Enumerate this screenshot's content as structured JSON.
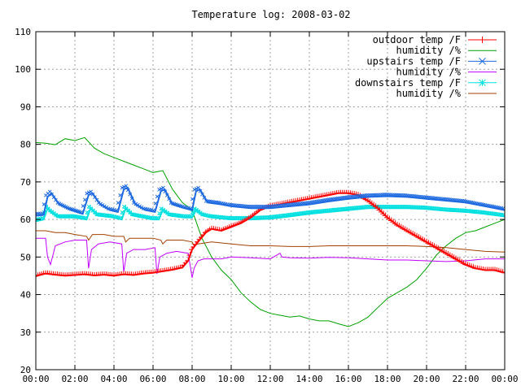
{
  "chart_data": {
    "type": "line",
    "title": "Temperature log: 2008-03-02",
    "xlabel": "",
    "ylabel": "",
    "xlim": [
      0,
      24
    ],
    "ylim": [
      20,
      110
    ],
    "grid": true,
    "legend_position": "top-right",
    "x_ticks": [
      {
        "value": 0,
        "label": "00:00"
      },
      {
        "value": 2,
        "label": "02:00"
      },
      {
        "value": 4,
        "label": "04:00"
      },
      {
        "value": 6,
        "label": "06:00"
      },
      {
        "value": 8,
        "label": "08:00"
      },
      {
        "value": 10,
        "label": "10:00"
      },
      {
        "value": 12,
        "label": "12:00"
      },
      {
        "value": 14,
        "label": "14:00"
      },
      {
        "value": 16,
        "label": "16:00"
      },
      {
        "value": 18,
        "label": "18:00"
      },
      {
        "value": 20,
        "label": "20:00"
      },
      {
        "value": 22,
        "label": "22:00"
      },
      {
        "value": 24,
        "label": "00:00"
      }
    ],
    "y_ticks": [
      {
        "value": 20,
        "label": "20"
      },
      {
        "value": 30,
        "label": "30"
      },
      {
        "value": 40,
        "label": "40"
      },
      {
        "value": 50,
        "label": "50"
      },
      {
        "value": 60,
        "label": "60"
      },
      {
        "value": 70,
        "label": "70"
      },
      {
        "value": 80,
        "label": "80"
      },
      {
        "value": 90,
        "label": "90"
      },
      {
        "value": 100,
        "label": "100"
      },
      {
        "value": 110,
        "label": "110"
      }
    ],
    "series": [
      {
        "name": "outdoor temp /F",
        "color": "#ff0000",
        "marker": "plus",
        "x": [
          0,
          0.5,
          1,
          1.5,
          2,
          2.5,
          3,
          3.5,
          4,
          4.5,
          5,
          5.5,
          6,
          6.5,
          7,
          7.5,
          7.8,
          8,
          8.3,
          8.7,
          9,
          9.5,
          10,
          10.5,
          11,
          11.5,
          12,
          12.5,
          13,
          13.5,
          14,
          14.5,
          15,
          15.5,
          16,
          16.5,
          17,
          17.5,
          18,
          18.5,
          19,
          19.5,
          20,
          20.5,
          21,
          21.5,
          22,
          22.5,
          23,
          23.5,
          24
        ],
        "y": [
          44.9,
          45.6,
          45.3,
          45.0,
          45.2,
          45.4,
          45.1,
          45.3,
          45.0,
          45.4,
          45.2,
          45.6,
          45.8,
          46.2,
          46.6,
          47.2,
          49.0,
          52.0,
          54.0,
          56.5,
          57.5,
          57.0,
          58.0,
          59.0,
          60.5,
          62.5,
          63.5,
          64.0,
          64.5,
          65.0,
          65.5,
          66.0,
          66.5,
          67.0,
          67.0,
          66.5,
          65.0,
          63.0,
          60.5,
          58.5,
          57.0,
          55.5,
          54.0,
          52.5,
          51.0,
          49.5,
          48.0,
          47.0,
          46.5,
          46.5,
          45.8
        ]
      },
      {
        "name": "humidity /%",
        "color": "#00a000",
        "marker": "none",
        "x": [
          0,
          0.5,
          1,
          1.5,
          2,
          2.5,
          3,
          3.5,
          4,
          4.5,
          5,
          5.5,
          6,
          6.5,
          7,
          7.5,
          8,
          8.5,
          9,
          9.5,
          10,
          10.5,
          11,
          11.5,
          12,
          12.5,
          13,
          13.5,
          14,
          14.5,
          15,
          15.5,
          16,
          16.5,
          17,
          17.5,
          18,
          18.5,
          19,
          19.5,
          20,
          20.5,
          21,
          21.5,
          22,
          22.5,
          23,
          23.5,
          24
        ],
        "y": [
          80.5,
          80.3,
          79.9,
          81.5,
          81.0,
          81.8,
          79.0,
          77.5,
          76.5,
          75.5,
          74.5,
          73.5,
          72.5,
          73.0,
          68.0,
          64.5,
          62.5,
          55.0,
          50.0,
          46.5,
          44.0,
          40.5,
          38.0,
          36.0,
          35.0,
          34.5,
          34.0,
          34.3,
          33.5,
          33.0,
          33.0,
          32.2,
          31.5,
          32.5,
          34.0,
          36.5,
          39.0,
          40.5,
          42.0,
          44.0,
          47.0,
          50.5,
          53.0,
          55.0,
          56.5,
          57.0,
          58.0,
          59.0,
          60.0
        ]
      },
      {
        "name": "upstairs temp /F",
        "color": "#1e6ae0",
        "marker": "cross",
        "x": [
          0,
          0.4,
          0.6,
          0.8,
          1.2,
          1.8,
          2.4,
          2.7,
          2.9,
          3.3,
          3.8,
          4.2,
          4.5,
          4.7,
          5.1,
          5.6,
          6.1,
          6.4,
          6.6,
          7.0,
          7.6,
          8.0,
          8.2,
          8.4,
          8.8,
          9.5,
          10,
          11,
          12,
          13,
          14,
          15,
          16,
          17,
          18,
          19,
          20,
          21,
          22,
          23,
          24
        ],
        "y": [
          61.0,
          61.2,
          66.0,
          67.0,
          64.0,
          62.5,
          61.5,
          66.5,
          67.0,
          64.0,
          62.5,
          62.0,
          68.0,
          68.5,
          64.0,
          62.5,
          62.0,
          67.5,
          68.0,
          64.0,
          63.0,
          62.5,
          67.5,
          68.0,
          64.5,
          64.0,
          63.5,
          63.0,
          63.0,
          63.5,
          64.0,
          64.8,
          65.5,
          66.0,
          66.2,
          66.0,
          65.5,
          65.0,
          64.5,
          63.5,
          62.5
        ]
      },
      {
        "name": "humidity /%",
        "color": "#c000ff",
        "marker": "none",
        "x": [
          0,
          0.5,
          0.6,
          0.75,
          1.0,
          1.5,
          2.0,
          2.6,
          2.7,
          2.85,
          3.2,
          3.8,
          4.4,
          4.5,
          4.65,
          5.0,
          5.6,
          6.1,
          6.2,
          6.35,
          6.7,
          7.2,
          7.8,
          8.0,
          8.1,
          8.3,
          8.6,
          9.5,
          10,
          11,
          12,
          12.5,
          12.6,
          13,
          14,
          15,
          16,
          17,
          18,
          19,
          20,
          21,
          22,
          23,
          24
        ],
        "y": [
          55.0,
          55.0,
          50.0,
          48.0,
          53.0,
          54.0,
          54.5,
          54.5,
          47.0,
          52.0,
          53.5,
          54.0,
          53.5,
          46.0,
          51.0,
          52.0,
          52.0,
          52.5,
          45.5,
          50.0,
          51.0,
          51.5,
          51.0,
          44.5,
          47.0,
          49.0,
          49.5,
          49.5,
          50.0,
          49.8,
          49.5,
          51.0,
          50.0,
          49.8,
          49.7,
          49.9,
          49.8,
          49.5,
          49.2,
          49.2,
          49.0,
          48.8,
          49.0,
          49.5,
          49.5
        ]
      },
      {
        "name": "downstairs temp /F",
        "color": "#00e0e0",
        "marker": "star",
        "x": [
          0,
          0.4,
          0.6,
          0.8,
          1.2,
          2.0,
          2.6,
          2.8,
          3.2,
          4.0,
          4.4,
          4.6,
          5.0,
          6.0,
          6.3,
          6.5,
          6.9,
          7.6,
          8.0,
          8.2,
          8.6,
          9,
          10,
          11,
          12,
          13,
          14,
          15,
          16,
          17,
          18,
          19,
          20,
          21,
          22,
          23,
          24
        ],
        "y": [
          59.5,
          60.0,
          63.0,
          62.0,
          60.5,
          60.5,
          60.0,
          63.0,
          61.0,
          60.5,
          60.0,
          63.0,
          61.0,
          60.0,
          60.0,
          62.5,
          61.0,
          60.5,
          60.5,
          62.5,
          61.0,
          60.5,
          60.0,
          60.0,
          60.2,
          60.8,
          61.5,
          62.0,
          62.5,
          63.0,
          63.0,
          63.0,
          62.8,
          62.3,
          62.0,
          61.5,
          60.8
        ]
      },
      {
        "name": "humidity /%",
        "color": "#a04000",
        "marker": "none",
        "x": [
          0,
          0.5,
          1.0,
          1.5,
          2.0,
          2.6,
          2.7,
          2.9,
          3.5,
          4.0,
          4.5,
          4.6,
          4.8,
          5.5,
          6.0,
          6.4,
          6.5,
          6.7,
          7.5,
          8.0,
          8.1,
          8.3,
          9,
          10,
          11,
          12,
          13,
          14,
          15,
          16,
          17,
          18,
          19,
          20,
          21,
          22,
          23,
          24
        ],
        "y": [
          57.0,
          57.0,
          56.5,
          56.5,
          56.0,
          55.5,
          54.5,
          56.0,
          56.0,
          55.5,
          55.5,
          54.0,
          55.0,
          55.0,
          55.0,
          54.5,
          53.5,
          54.5,
          54.5,
          54.0,
          53.0,
          53.5,
          54.0,
          53.5,
          53.0,
          53.0,
          52.8,
          52.8,
          53.0,
          53.0,
          53.0,
          53.0,
          53.0,
          52.8,
          52.5,
          52.0,
          51.5,
          51.3
        ]
      }
    ]
  }
}
